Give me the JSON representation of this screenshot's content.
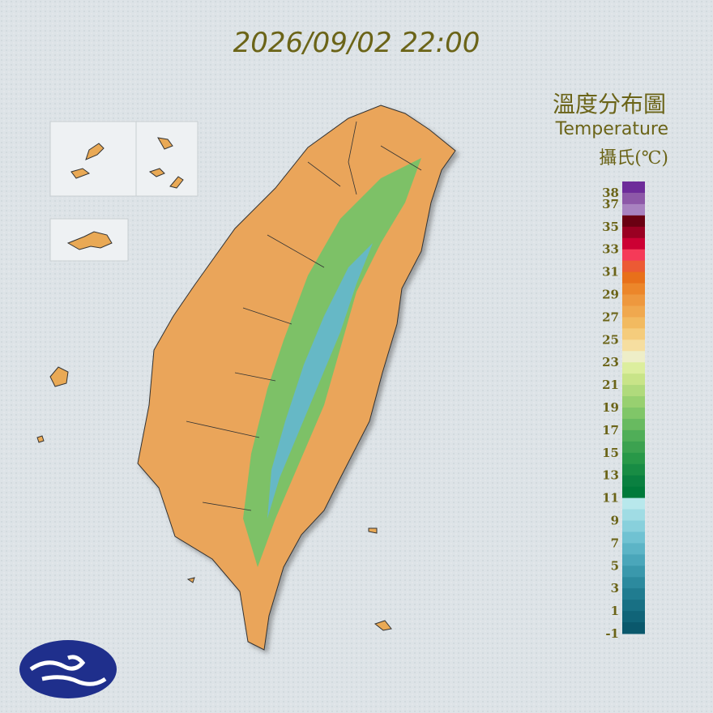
{
  "timestamp": "2026/09/02 22:00",
  "legend": {
    "title": "溫度分布圖",
    "subtitle": "Temperature",
    "unit": "攝氏(℃)",
    "range": [
      -1,
      39
    ],
    "ticks": [
      38,
      37,
      35,
      33,
      31,
      29,
      27,
      25,
      23,
      21,
      19,
      17,
      15,
      13,
      11,
      9,
      7,
      5,
      3,
      1,
      -1
    ],
    "colors": [
      "#6e2c9a",
      "#8d58a8",
      "#a882c0",
      "#6a0012",
      "#9a0022",
      "#cc0033",
      "#f53a58",
      "#ec5a34",
      "#e8701a",
      "#ec862a",
      "#ee983e",
      "#f0a84e",
      "#f2ba60",
      "#f5cc7c",
      "#f6dea0",
      "#eeeec8",
      "#dcee9e",
      "#c8e488",
      "#b0da7c",
      "#98d070",
      "#80c668",
      "#68ba60",
      "#50ae58",
      "#3ca250",
      "#289848",
      "#188c44",
      "#0a8040",
      "#007a3a",
      "#b8e8ec",
      "#a0dce4",
      "#88d0dc",
      "#70c2d2",
      "#5cb4c6",
      "#4aa6ba",
      "#3a98ac",
      "#2c8a9e",
      "#207c90",
      "#187084",
      "#106478",
      "#0a586c"
    ]
  }
}
